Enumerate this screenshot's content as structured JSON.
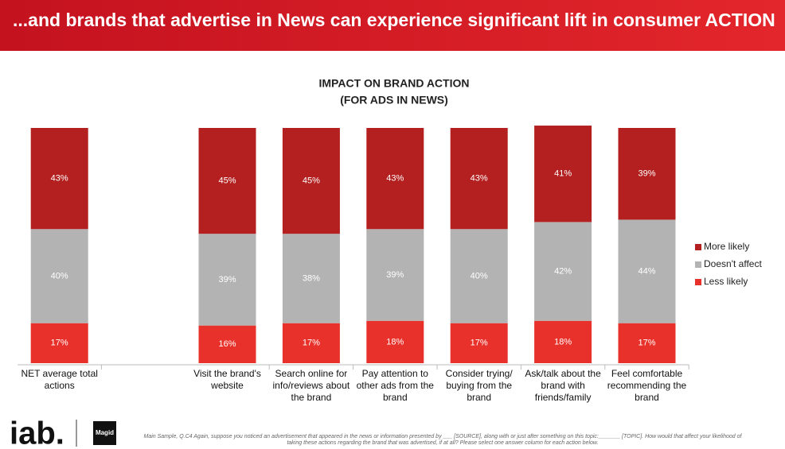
{
  "header": "...and brands that advertise in News can experience significant lift in consumer ACTION",
  "logos": [
    "iab.",
    "Magid"
  ],
  "footnote": "Main Sample, Q.C4 Again, suppose you noticed an advertisement that appeared in the news or information presented by ___ [SOURCE], along with or just after something on this topic:_______ [TOPIC]. How would that affect your likelihood of taking these actions regarding the brand that was advertised, if at all? Please select one answer column for each action below.",
  "chart_data": {
    "type": "stacked_bar",
    "title": "IMPACT ON BRAND ACTION",
    "subtitle": "(FOR ADS IN NEWS)",
    "categories": [
      "NET average total actions",
      "Visit the brand's website",
      "Search online for info/reviews about the brand",
      "Pay attention to other ads from the brand",
      "Consider trying/ buying from the brand",
      "Ask/talk about the brand with friends/family",
      "Feel comfortable recommending the brand"
    ],
    "ylim": [
      0,
      100
    ],
    "legend": "right",
    "series": [
      {
        "name": "Less likely",
        "color": "#e8312a",
        "values": [
          17,
          16,
          17,
          18,
          17,
          18,
          17
        ],
        "value_labels": [
          "17%",
          "16%",
          "17%",
          "18%",
          "17%",
          "18%",
          "17%"
        ]
      },
      {
        "name": "Doesn't affect",
        "color": "#b3b3b3",
        "values": [
          40,
          39,
          38,
          39,
          40,
          42,
          44
        ],
        "value_labels": [
          "40%",
          "39%",
          "38%",
          "39%",
          "40%",
          "42%",
          "44%"
        ]
      },
      {
        "name": "More likely",
        "color": "#b3201f",
        "values": [
          43,
          45,
          45,
          43,
          43,
          41,
          39
        ],
        "value_labels": [
          "43%",
          "45%",
          "45%",
          "43%",
          "43%",
          "41%",
          "39%"
        ]
      }
    ]
  }
}
